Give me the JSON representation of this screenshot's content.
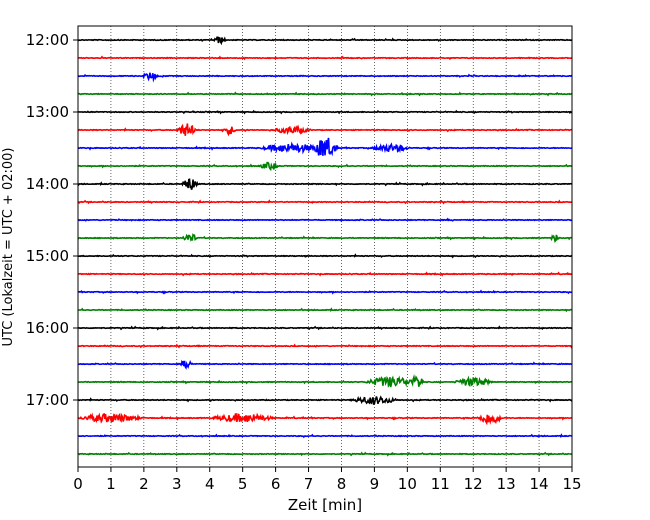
{
  "chart_data": {
    "type": "line",
    "title": "",
    "xlabel": "Zeit  [min]",
    "ylabel": "UTC (Lokalzeit = UTC + 02:00)",
    "xlim": [
      0,
      15
    ],
    "x_ticks": [
      "0",
      "1",
      "2",
      "3",
      "4",
      "5",
      "6",
      "7",
      "8",
      "9",
      "10",
      "11",
      "12",
      "13",
      "14",
      "15"
    ],
    "y_ticks": [
      "12:00",
      "13:00",
      "14:00",
      "15:00",
      "16:00",
      "17:00"
    ],
    "grid": "vertical dotted at each minute",
    "colors": [
      "#000000",
      "#ff0000",
      "#0000ff",
      "#008000"
    ],
    "series": [
      {
        "start": "12:00",
        "color": "#000000",
        "bursts": [
          [
            4.3,
            0.4,
            0.8
          ]
        ]
      },
      {
        "start": "12:15",
        "color": "#ff0000",
        "bursts": []
      },
      {
        "start": "12:30",
        "color": "#0000ff",
        "bursts": [
          [
            2.2,
            0.5,
            0.9
          ]
        ]
      },
      {
        "start": "12:45",
        "color": "#008000",
        "bursts": []
      },
      {
        "start": "13:00",
        "color": "#000000",
        "bursts": []
      },
      {
        "start": "13:15",
        "color": "#ff0000",
        "bursts": [
          [
            3.3,
            0.6,
            1.6
          ],
          [
            4.6,
            0.4,
            1.0
          ],
          [
            6.5,
            1.2,
            0.8
          ]
        ]
      },
      {
        "start": "13:30",
        "color": "#0000ff",
        "bursts": [
          [
            6.5,
            2.0,
            1.0
          ],
          [
            7.5,
            0.8,
            2.6
          ],
          [
            9.5,
            1.2,
            0.9
          ]
        ]
      },
      {
        "start": "13:45",
        "color": "#008000",
        "bursts": [
          [
            5.8,
            0.6,
            0.8
          ]
        ]
      },
      {
        "start": "14:00",
        "color": "#000000",
        "bursts": [
          [
            3.4,
            0.5,
            1.5
          ]
        ]
      },
      {
        "start": "14:15",
        "color": "#ff0000",
        "bursts": []
      },
      {
        "start": "14:30",
        "color": "#0000ff",
        "bursts": []
      },
      {
        "start": "14:45",
        "color": "#008000",
        "bursts": [
          [
            3.4,
            0.5,
            1.0
          ],
          [
            14.5,
            0.3,
            0.9
          ]
        ]
      },
      {
        "start": "15:00",
        "color": "#000000",
        "bursts": []
      },
      {
        "start": "15:15",
        "color": "#ff0000",
        "bursts": []
      },
      {
        "start": "15:30",
        "color": "#0000ff",
        "bursts": []
      },
      {
        "start": "15:45",
        "color": "#008000",
        "bursts": []
      },
      {
        "start": "16:00",
        "color": "#000000",
        "bursts": []
      },
      {
        "start": "16:15",
        "color": "#ff0000",
        "bursts": []
      },
      {
        "start": "16:30",
        "color": "#0000ff",
        "bursts": [
          [
            3.3,
            0.4,
            0.9
          ]
        ]
      },
      {
        "start": "16:45",
        "color": "#008000",
        "bursts": [
          [
            9.5,
            1.6,
            1.2
          ],
          [
            10.3,
            0.4,
            1.6
          ],
          [
            12.0,
            1.2,
            1.0
          ]
        ]
      },
      {
        "start": "17:00",
        "color": "#000000",
        "bursts": [
          [
            9.0,
            1.5,
            0.9
          ]
        ]
      },
      {
        "start": "17:15",
        "color": "#ff0000",
        "bursts": [
          [
            1.0,
            2.0,
            1.0
          ],
          [
            5.0,
            2.0,
            1.0
          ],
          [
            12.5,
            0.8,
            1.4
          ]
        ]
      },
      {
        "start": "17:30",
        "color": "#0000ff",
        "bursts": []
      },
      {
        "start": "17:45",
        "color": "#008000",
        "bursts": []
      }
    ]
  }
}
